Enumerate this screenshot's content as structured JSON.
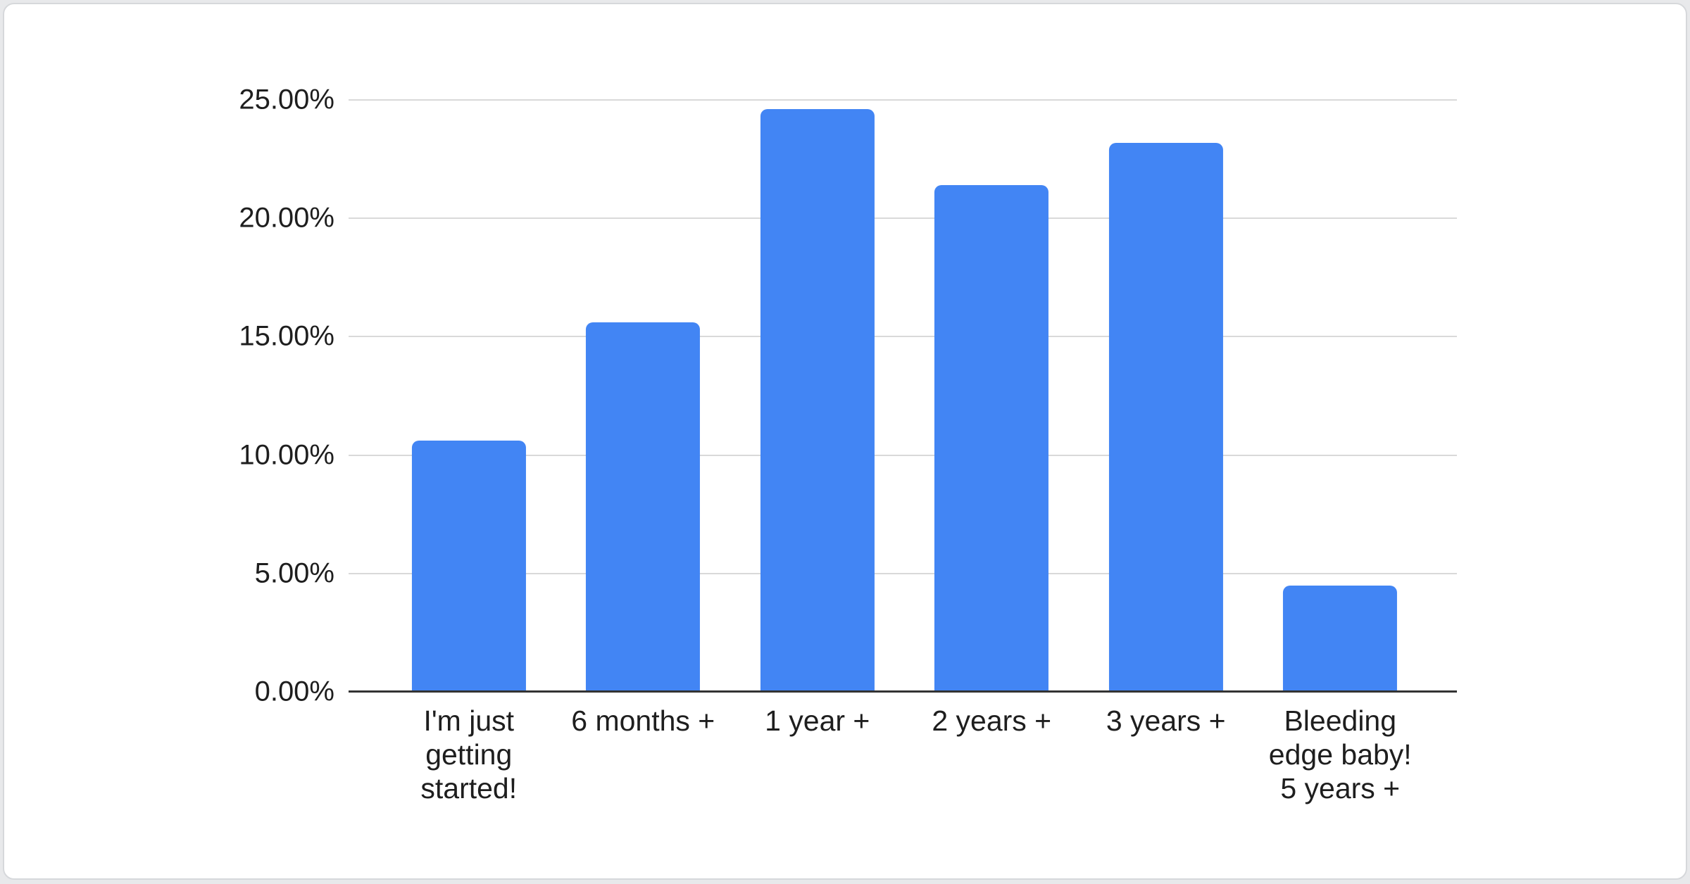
{
  "page": {
    "background": "#e8e9eb",
    "card_background": "#ffffff",
    "card_border": "#d6d8db"
  },
  "chart_data": {
    "type": "bar",
    "title": "",
    "xlabel": "",
    "ylabel": "",
    "categories": [
      "I'm just\ngetting\nstarted!",
      "6 months +",
      "1 year +",
      "2 years +",
      "3 years +",
      "Bleeding\nedge baby!\n5 years +"
    ],
    "values": [
      10.6,
      15.6,
      24.6,
      21.4,
      23.2,
      4.5
    ],
    "unit": "percent",
    "ylim": [
      0,
      25
    ],
    "y_tick_labels": [
      "25.00%",
      "20.00%",
      "15.00%",
      "10.00%",
      "5.00%",
      "0.00%"
    ],
    "y_tick_values": [
      25,
      20,
      15,
      10,
      5,
      0
    ],
    "grid": true,
    "legend": "none",
    "bar_color": "#4285f4",
    "gridline_color": "#d9d9d9",
    "axis_line_color": "#333333",
    "text_color": "#1e1e1e"
  }
}
